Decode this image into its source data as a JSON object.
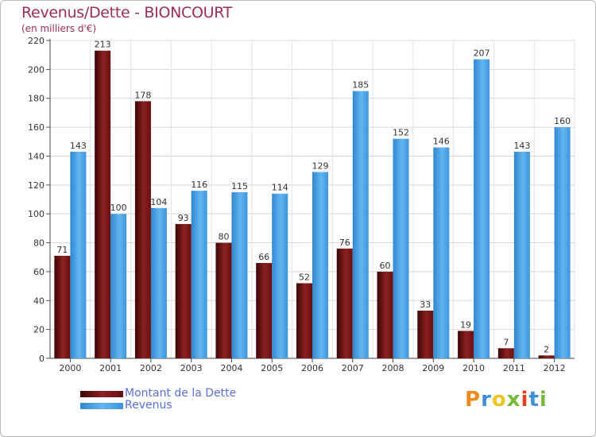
{
  "title": "Revenus/Dette - BIONCOURT",
  "subtitle": "(en milliers d'€)",
  "brand": "Proxiti",
  "brand_colors": [
    "#f08a1c",
    "#3f8fd6",
    "#f0c51c",
    "#78b83a",
    "#e0401c",
    "#3f8fd6",
    "#78b83a"
  ],
  "colors": {
    "dette": "#6e0f0f",
    "revenus": "#4aa3e8",
    "title": "#9b2d5a",
    "legend_text": "#5a6fd8"
  },
  "chart_data": {
    "type": "bar",
    "title": "Revenus/Dette - BIONCOURT",
    "ylabel": "(en milliers d'€)",
    "xlabel": "",
    "categories": [
      "2000",
      "2001",
      "2002",
      "2003",
      "2004",
      "2005",
      "2006",
      "2007",
      "2008",
      "2009",
      "2010",
      "2011",
      "2012"
    ],
    "series": [
      {
        "name": "Montant de la Dette",
        "values": [
          71,
          213,
          178,
          93,
          80,
          66,
          52,
          76,
          60,
          33,
          19,
          7,
          2
        ]
      },
      {
        "name": "Revenus",
        "values": [
          143,
          100,
          104,
          116,
          115,
          114,
          129,
          185,
          152,
          146,
          207,
          143,
          160
        ]
      }
    ],
    "ylim": [
      0,
      220
    ],
    "yticks": [
      0,
      20,
      40,
      60,
      80,
      100,
      120,
      140,
      160,
      180,
      200,
      220
    ],
    "grid": true,
    "legend": "bottom-left"
  }
}
